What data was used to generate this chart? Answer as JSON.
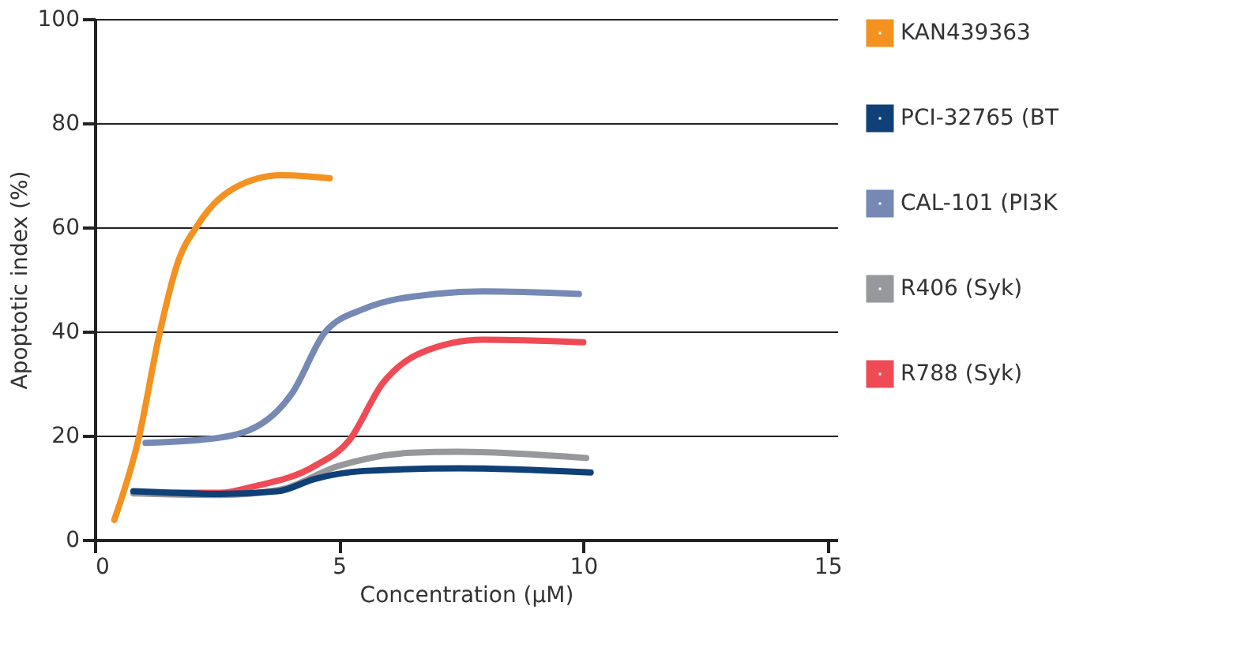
{
  "chart_data": {
    "type": "line",
    "xlabel": "Concentration (μM)",
    "ylabel": "Apoptotic index (%)",
    "xlim": [
      0,
      15.2
    ],
    "xticks": [
      0,
      5,
      10,
      15
    ],
    "ylim": [
      0,
      100
    ],
    "yticks": [
      0,
      20,
      40,
      60,
      80,
      100
    ],
    "grid": "y",
    "legend": "right",
    "line_style": "solid",
    "marker": "none",
    "series": [
      {
        "name": "KAN439363",
        "color": "#f39221",
        "x": [
          0.4,
          0.89,
          1.33,
          1.68,
          2.12,
          2.85,
          3.82,
          4.81
        ],
        "values": [
          3.8,
          19.1,
          39.8,
          52.7,
          60.6,
          67.5,
          70,
          69.4
        ]
      },
      {
        "name": "PCI-32765 (BT",
        "color": "#0f4077",
        "x": [
          0.79,
          2.56,
          3.74,
          4.51,
          5.5,
          7.46,
          10.15
        ],
        "values": [
          9.3,
          8.8,
          9.3,
          11.7,
          13.2,
          13.7,
          12.9
        ]
      },
      {
        "name": "CAL-101 (PI3K",
        "color": "#7589b4",
        "x": [
          1.04,
          2.56,
          3.54,
          4.03,
          4.71,
          5.5,
          6.97,
          7.95,
          9.91
        ],
        "values": [
          18.6,
          19.6,
          23.1,
          28,
          39.8,
          44.3,
          47.2,
          47.7,
          47.2
        ]
      },
      {
        "name": "R406 (Syk)",
        "color": "#97989b",
        "x": [
          0.79,
          2.56,
          3.74,
          5.0,
          6.47,
          7.43,
          10.06
        ],
        "values": [
          8.9,
          8.6,
          9.5,
          14.2,
          16.7,
          16.9,
          15.7
        ]
      },
      {
        "name": "R788 (Syk)",
        "color": "#ef4b55",
        "x": [
          0.79,
          2.56,
          3.24,
          4.51,
          5.21,
          5.89,
          6.68,
          7.95,
          10.0
        ],
        "values": [
          9.0,
          9.0,
          10.2,
          14.2,
          19.1,
          30,
          35.9,
          38.4,
          37.9
        ]
      }
    ]
  }
}
